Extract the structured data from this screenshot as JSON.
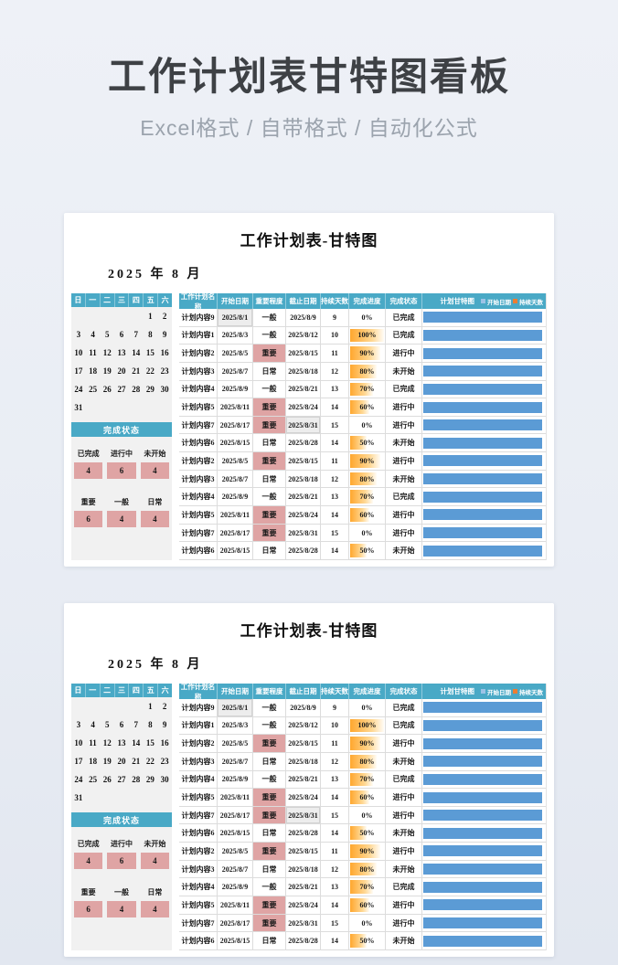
{
  "page": {
    "title": "工作计划表甘特图看板",
    "subtitle": "Excel格式 / 自带格式 / 自动化公式"
  },
  "colors": {
    "teal": "#49a9c6",
    "bar_blue": "#5b9bd5",
    "pink": "#dfa4a4",
    "databar_orange": "#ffa72e",
    "legend_start_blue": "#9dc3e6",
    "legend_days_orange": "#ed7d31"
  },
  "panel": {
    "title": "工作计划表-甘特图",
    "date": "2025 年 8 月",
    "calendar": {
      "weekdays": [
        "日",
        "一",
        "二",
        "三",
        "四",
        "五",
        "六"
      ],
      "weeks": [
        [
          "",
          "",
          "",
          "",
          "",
          "1",
          "2"
        ],
        [
          "3",
          "4",
          "5",
          "6",
          "7",
          "8",
          "9"
        ],
        [
          "10",
          "11",
          "12",
          "13",
          "14",
          "15",
          "16"
        ],
        [
          "17",
          "18",
          "19",
          "20",
          "21",
          "22",
          "23"
        ],
        [
          "24",
          "25",
          "26",
          "27",
          "28",
          "29",
          "30"
        ],
        [
          "31",
          "",
          "",
          "",
          "",
          "",
          ""
        ]
      ]
    },
    "summary": {
      "title": "完成状态",
      "status_labels": [
        "已完成",
        "进行中",
        "未开始"
      ],
      "status_values": [
        "4",
        "6",
        "4"
      ],
      "priority_labels": [
        "重要",
        "一般",
        "日常"
      ],
      "priority_values": [
        "6",
        "4",
        "4"
      ]
    },
    "table": {
      "headers": [
        "工作计划名称",
        "开始日期",
        "重要程度",
        "截止日期",
        "持续天数",
        "完成进度",
        "完成状态"
      ],
      "gantt_header": "计划甘特图",
      "legend": [
        {
          "label": "开始日期",
          "color": "#9dc3e6"
        },
        {
          "label": "持续天数",
          "color": "#ed7d31"
        }
      ],
      "rows": [
        {
          "name": "计划内容9",
          "start": "2025/8/1",
          "importance": "一般",
          "imp_hl": false,
          "end": "2025/8/9",
          "days": "9",
          "progress": "0%",
          "progress_pct": 0,
          "status": "已完成",
          "start_hl": true,
          "end_hl": false
        },
        {
          "name": "计划内容1",
          "start": "2025/8/3",
          "importance": "一般",
          "imp_hl": false,
          "end": "2025/8/12",
          "days": "10",
          "progress": "100%",
          "progress_pct": 100,
          "status": "已完成",
          "start_hl": false,
          "end_hl": false
        },
        {
          "name": "计划内容2",
          "start": "2025/8/5",
          "importance": "重要",
          "imp_hl": true,
          "end": "2025/8/15",
          "days": "11",
          "progress": "90%",
          "progress_pct": 90,
          "status": "进行中",
          "start_hl": false,
          "end_hl": false
        },
        {
          "name": "计划内容3",
          "start": "2025/8/7",
          "importance": "日常",
          "imp_hl": false,
          "end": "2025/8/18",
          "days": "12",
          "progress": "80%",
          "progress_pct": 80,
          "status": "未开始",
          "start_hl": false,
          "end_hl": false
        },
        {
          "name": "计划内容4",
          "start": "2025/8/9",
          "importance": "一般",
          "imp_hl": false,
          "end": "2025/8/21",
          "days": "13",
          "progress": "70%",
          "progress_pct": 70,
          "status": "已完成",
          "start_hl": false,
          "end_hl": false
        },
        {
          "name": "计划内容5",
          "start": "2025/8/11",
          "importance": "重要",
          "imp_hl": true,
          "end": "2025/8/24",
          "days": "14",
          "progress": "60%",
          "progress_pct": 60,
          "status": "进行中",
          "start_hl": false,
          "end_hl": false
        },
        {
          "name": "计划内容7",
          "start": "2025/8/17",
          "importance": "重要",
          "imp_hl": true,
          "end": "2025/8/31",
          "days": "15",
          "progress": "0%",
          "progress_pct": 0,
          "status": "进行中",
          "start_hl": false,
          "end_hl": true
        },
        {
          "name": "计划内容6",
          "start": "2025/8/15",
          "importance": "日常",
          "imp_hl": false,
          "end": "2025/8/28",
          "days": "14",
          "progress": "50%",
          "progress_pct": 50,
          "status": "未开始",
          "start_hl": false,
          "end_hl": false
        },
        {
          "name": "计划内容2",
          "start": "2025/8/5",
          "importance": "重要",
          "imp_hl": true,
          "end": "2025/8/15",
          "days": "11",
          "progress": "90%",
          "progress_pct": 90,
          "status": "进行中",
          "start_hl": false,
          "end_hl": false
        },
        {
          "name": "计划内容3",
          "start": "2025/8/7",
          "importance": "日常",
          "imp_hl": false,
          "end": "2025/8/18",
          "days": "12",
          "progress": "80%",
          "progress_pct": 80,
          "status": "未开始",
          "start_hl": false,
          "end_hl": false
        },
        {
          "name": "计划内容4",
          "start": "2025/8/9",
          "importance": "一般",
          "imp_hl": false,
          "end": "2025/8/21",
          "days": "13",
          "progress": "70%",
          "progress_pct": 70,
          "status": "已完成",
          "start_hl": false,
          "end_hl": false
        },
        {
          "name": "计划内容5",
          "start": "2025/8/11",
          "importance": "重要",
          "imp_hl": true,
          "end": "2025/8/24",
          "days": "14",
          "progress": "60%",
          "progress_pct": 60,
          "status": "进行中",
          "start_hl": false,
          "end_hl": false
        },
        {
          "name": "计划内容7",
          "start": "2025/8/17",
          "importance": "重要",
          "imp_hl": true,
          "end": "2025/8/31",
          "days": "15",
          "progress": "0%",
          "progress_pct": 0,
          "status": "进行中",
          "start_hl": false,
          "end_hl": false
        },
        {
          "name": "计划内容6",
          "start": "2025/8/15",
          "importance": "日常",
          "imp_hl": false,
          "end": "2025/8/28",
          "days": "14",
          "progress": "50%",
          "progress_pct": 50,
          "status": "未开始",
          "start_hl": false,
          "end_hl": false
        }
      ]
    }
  }
}
